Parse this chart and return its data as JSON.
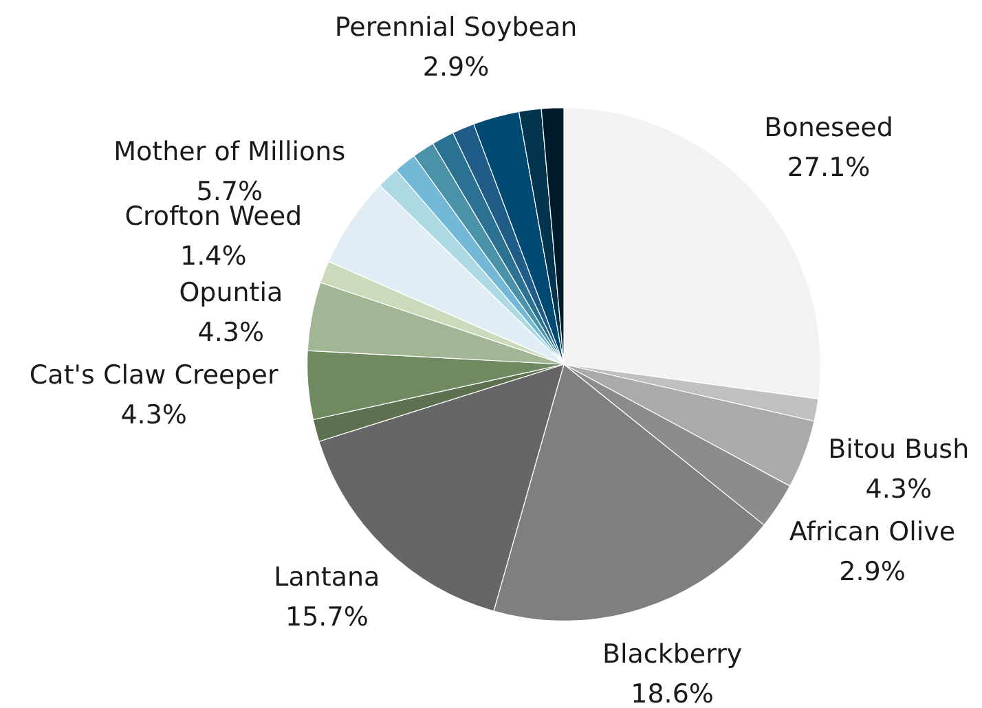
{
  "chart_data": {
    "type": "pie",
    "categories": [
      "Boneseed",
      null,
      "Bitou Bush",
      "African Olive",
      "Blackberry",
      "Lantana",
      null,
      "Cat's Claw Creeper",
      "Opuntia",
      "Crofton Weed",
      "Mother of Millions",
      null,
      null,
      null,
      null,
      null,
      "Perennial Soybean",
      null,
      null
    ],
    "values": [
      27.1,
      1.4,
      4.3,
      2.9,
      18.6,
      15.7,
      1.4,
      4.3,
      4.3,
      1.4,
      5.7,
      1.4,
      1.4,
      1.4,
      1.4,
      1.4,
      2.9,
      1.4,
      1.4
    ],
    "value_labels": [
      "27.1%",
      null,
      "4.3%",
      "2.9%",
      "18.6%",
      "15.7%",
      null,
      "4.3%",
      "4.3%",
      "1.4%",
      "5.7%",
      null,
      null,
      null,
      null,
      null,
      "2.9%",
      null,
      null
    ],
    "colors": [
      "#f2f2f2",
      "#c0c0c0",
      "#a9aaab",
      "#8c8c8a",
      "#7f7f7f",
      "#666666",
      "#5d7050",
      "#6f8a60",
      "#a2b594",
      "#cdd9bb",
      "#e1edf5",
      "#acd9e3",
      "#73b8d6",
      "#4a92a8",
      "#2b7191",
      "#1f5c88",
      "#004a73",
      "#03354f",
      "#001b2b"
    ],
    "legend": false
  }
}
